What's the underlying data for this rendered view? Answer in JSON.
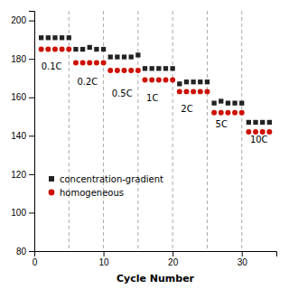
{
  "chart_data": {
    "type": "scatter",
    "xlabel": "Cycle Number",
    "xlim": [
      0,
      35
    ],
    "ylim": [
      80,
      205
    ],
    "xticks": [
      0,
      10,
      20,
      30
    ],
    "yticks": [
      80,
      100,
      120,
      140,
      160,
      180,
      200
    ],
    "legend": "lower left",
    "x": [
      1,
      2,
      3,
      4,
      5,
      6,
      7,
      8,
      9,
      10,
      11,
      12,
      13,
      14,
      15,
      16,
      17,
      18,
      19,
      20,
      21,
      22,
      23,
      24,
      25,
      26,
      27,
      28,
      29,
      30,
      31,
      32,
      33,
      34
    ],
    "series": [
      {
        "name": "concentration-gradient",
        "color": "#222222",
        "marker": "square",
        "values": [
          191,
          191,
          191,
          191,
          191,
          185,
          185,
          186,
          185,
          185,
          181,
          181,
          181,
          181,
          182,
          175,
          175,
          175,
          175,
          175,
          167,
          168,
          168,
          168,
          168,
          157,
          158,
          157,
          157,
          157,
          147,
          147,
          147,
          147
        ]
      },
      {
        "name": "homogeneous",
        "color": "#cc1100",
        "marker": "circle",
        "values": [
          185,
          185,
          185,
          185,
          185,
          178,
          178,
          178,
          178,
          178,
          174,
          174,
          174,
          174,
          174,
          169,
          169,
          169,
          169,
          169,
          163,
          163,
          163,
          163,
          163,
          152,
          152,
          152,
          152,
          152,
          142,
          142,
          142,
          142
        ]
      }
    ],
    "vlines": [
      5,
      10,
      15,
      20,
      25,
      30
    ],
    "annotations": [
      {
        "text": "0.1C",
        "x": 1.0,
        "y": 178
      },
      {
        "text": "0.2C",
        "x": 6.2,
        "y": 170
      },
      {
        "text": "0.5C",
        "x": 11.2,
        "y": 164
      },
      {
        "text": "1C",
        "x": 16.2,
        "y": 162
      },
      {
        "text": "2C",
        "x": 21.2,
        "y": 156
      },
      {
        "text": "5C",
        "x": 26.2,
        "y": 148
      },
      {
        "text": "10C",
        "x": 31.2,
        "y": 140
      }
    ]
  }
}
